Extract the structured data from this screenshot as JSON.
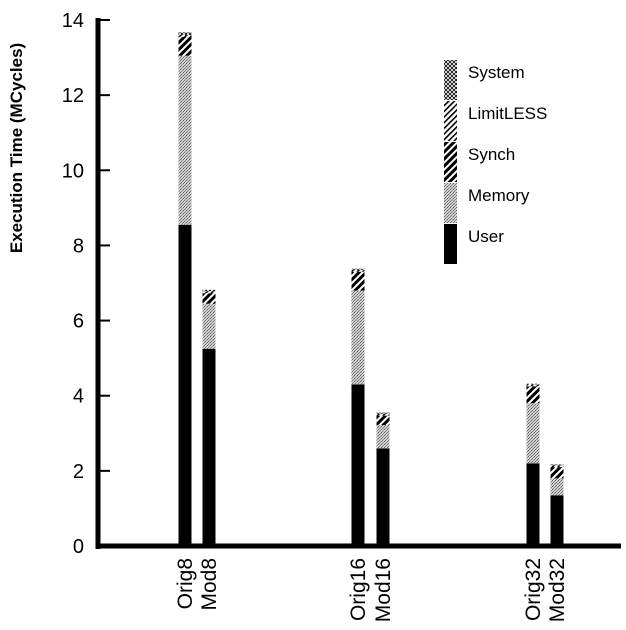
{
  "chart_data": {
    "type": "bar",
    "stacked": true,
    "ylabel": "Execution Time (MCycles)",
    "ylim": [
      0,
      14
    ],
    "yticks": [
      0,
      2,
      4,
      6,
      8,
      10,
      12,
      14
    ],
    "categories": [
      "Orig8",
      "Mod8",
      "Orig16",
      "Mod16",
      "Orig32",
      "Mod32"
    ],
    "series": [
      {
        "name": "User",
        "values": [
          8.55,
          5.25,
          4.3,
          2.6,
          2.2,
          1.35
        ]
      },
      {
        "name": "Memory",
        "values": [
          4.5,
          1.2,
          2.5,
          0.62,
          1.6,
          0.45
        ]
      },
      {
        "name": "Synch",
        "values": [
          0.5,
          0.28,
          0.5,
          0.25,
          0.45,
          0.3
        ]
      },
      {
        "name": "LimitLESS",
        "values": [
          0.05,
          0.05,
          0.05,
          0.05,
          0.05,
          0.05
        ]
      },
      {
        "name": "System",
        "values": [
          0.07,
          0.04,
          0.03,
          0.03,
          0.02,
          0.02
        ]
      }
    ],
    "legend_position": "top-right",
    "legend_order": [
      "System",
      "LimitLESS",
      "Synch",
      "Memory",
      "User"
    ],
    "series_fills": {
      "User": "#000000",
      "Memory": "stipple",
      "Synch": "heavy-diagonal-hatch",
      "LimitLESS": "diagonal-hatch",
      "System": "cross-hatch"
    }
  }
}
